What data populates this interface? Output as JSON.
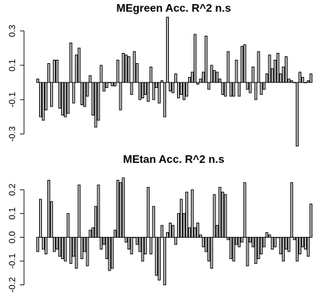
{
  "chart_data": [
    {
      "type": "bar",
      "title": "MEgreen Acc. R^2 n.s",
      "ylim": [
        -0.34,
        0.38
      ],
      "yticks": [
        -0.3,
        -0.1,
        0.1,
        0.3
      ],
      "ytick_labels": [
        "-0.3",
        "-0.1",
        "0.1",
        "0.3"
      ],
      "values": [
        0.02,
        -0.2,
        -0.22,
        -0.16,
        0.11,
        -0.14,
        0.13,
        0.13,
        -0.15,
        -0.19,
        -0.2,
        -0.18,
        0.23,
        -0.12,
        0.16,
        0.2,
        -0.13,
        -0.14,
        -0.08,
        0.04,
        -0.19,
        -0.26,
        -0.22,
        0.1,
        -0.05,
        -0.03,
        0.0,
        -0.02,
        -0.02,
        0.13,
        -0.16,
        0.17,
        0.16,
        0.15,
        -0.07,
        0.18,
        0.11,
        -0.1,
        -0.09,
        -0.07,
        -0.11,
        0.09,
        -0.1,
        -0.03,
        -0.12,
        0.01,
        -0.2,
        0.38,
        -0.05,
        -0.06,
        0.05,
        -0.09,
        -0.07,
        -0.1,
        -0.08,
        0.03,
        0.06,
        0.28,
        -0.01,
        0.02,
        0.06,
        0.27,
        -0.04,
        0.1,
        0.07,
        0.06,
        0.02,
        -0.07,
        -0.08,
        0.18,
        -0.08,
        -0.08,
        0.13,
        -0.08,
        0.21,
        0.22,
        -0.04,
        -0.06,
        0.09,
        -0.1,
        0.18,
        -0.07,
        -0.04,
        0.05,
        0.16,
        0.08,
        0.13,
        0.17,
        0.05,
        0.09,
        0.15,
        0.02,
        0.01,
        0.0,
        -0.37,
        0.06,
        0.03,
        0.0,
        0.01,
        0.05
      ]
    },
    {
      "type": "bar",
      "title": "MEtan Acc. R^2 n.s",
      "ylim": [
        -0.23,
        0.29
      ],
      "yticks": [
        -0.2,
        -0.1,
        0.0,
        0.1,
        0.2
      ],
      "ytick_labels": [
        "-0.2",
        "-0.1",
        "0.0",
        "0.1",
        "0.2"
      ],
      "values": [
        -0.06,
        0.16,
        -0.05,
        -0.07,
        0.24,
        0.15,
        -0.06,
        -0.05,
        -0.08,
        -0.09,
        -0.1,
        0.1,
        -0.11,
        -0.08,
        -0.13,
        0.22,
        -0.09,
        -0.06,
        -0.12,
        0.03,
        0.04,
        0.13,
        0.22,
        -0.05,
        -0.03,
        -0.09,
        -0.14,
        -0.13,
        0.03,
        0.24,
        0.23,
        0.25,
        -0.02,
        -0.05,
        -0.07,
        0.0,
        -0.03,
        -0.06,
        -0.1,
        -0.07,
        0.21,
        -0.07,
        0.13,
        -0.16,
        -0.18,
        0.05,
        -0.2,
        0.02,
        0.06,
        0.05,
        -0.03,
        0.1,
        0.16,
        0.1,
        0.19,
        0.04,
        0.2,
        0.04,
        0.06,
        0.01,
        -0.04,
        -0.06,
        -0.1,
        -0.13,
        0.18,
        0.05,
        0.21,
        0.19,
        0.18,
        -0.01,
        -0.09,
        -0.1,
        -0.03,
        -0.04,
        -0.02,
        0.23,
        -0.12,
        -0.02,
        -0.04,
        -0.11,
        -0.09,
        -0.07,
        -0.04,
        0.02,
        0.01,
        -0.05,
        -0.04,
        0.0,
        -0.07,
        -0.1,
        -0.05,
        -0.06,
        0.23,
        -0.01,
        -0.1,
        -0.07,
        -0.04,
        -0.05,
        -0.08,
        0.14
      ]
    }
  ]
}
